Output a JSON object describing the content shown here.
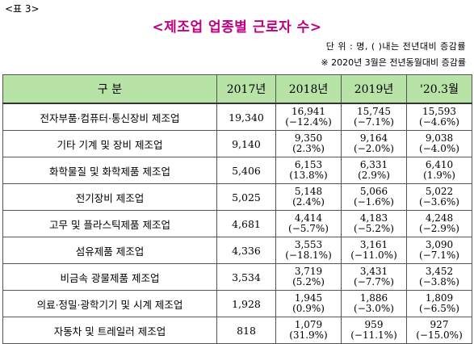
{
  "table_label": "<표 3>",
  "title": "<제조업 업종별 근로자 수>",
  "unit_note": "단 위 : 명, ( )내는 전년대비 증감률",
  "period_note": "※ 2020년 3월은 전년동월대비 증감률",
  "headers": [
    "구 분",
    "2017년",
    "2018년",
    "2019년",
    "'20.3월"
  ],
  "rows": [
    {
      "cat": "전자부품·컴퓨터·통신장비 제조업",
      "y2017": "19,340",
      "y2018": {
        "v": "16,941",
        "c": "(−12.4%)"
      },
      "y2019": {
        "v": "15,745",
        "c": "(−7.1%)"
      },
      "y2020": {
        "v": "15,593",
        "c": "(−4.6%)"
      }
    },
    {
      "cat": "기타 기계 및 장비 제조업",
      "y2017": "9,140",
      "y2018": {
        "v": "9,350",
        "c": "(2.3%)"
      },
      "y2019": {
        "v": "9,164",
        "c": "(−2.0%)"
      },
      "y2020": {
        "v": "9,038",
        "c": "(−4.0%)"
      }
    },
    {
      "cat": "화학물질 및 화학제품 제조업",
      "y2017": "5,406",
      "y2018": {
        "v": "6,153",
        "c": "(13.8%)"
      },
      "y2019": {
        "v": "6,331",
        "c": "(2.9%)"
      },
      "y2020": {
        "v": "6,410",
        "c": "(1.9%)"
      }
    },
    {
      "cat": "전기장비 제조업",
      "y2017": "5,025",
      "y2018": {
        "v": "5,148",
        "c": "(2.4%)"
      },
      "y2019": {
        "v": "5,066",
        "c": "(−1.6%)"
      },
      "y2020": {
        "v": "5,022",
        "c": "(−3.6%)"
      }
    },
    {
      "cat": "고무 및 플라스틱제품 제조업",
      "y2017": "4,681",
      "y2018": {
        "v": "4,414",
        "c": "(−5.7%)"
      },
      "y2019": {
        "v": "4,183",
        "c": "(−5.2%)"
      },
      "y2020": {
        "v": "4,248",
        "c": "(−2.9%)"
      }
    },
    {
      "cat": "섬유제품 제조업",
      "y2017": "4,336",
      "y2018": {
        "v": "3,553",
        "c": "(−18.1%)"
      },
      "y2019": {
        "v": "3,161",
        "c": "(−11.0%)"
      },
      "y2020": {
        "v": "3,090",
        "c": "(−7.1%)"
      }
    },
    {
      "cat": "비금속 광물제품 제조업",
      "y2017": "3,534",
      "y2018": {
        "v": "3,719",
        "c": "(5.2%)"
      },
      "y2019": {
        "v": "3,431",
        "c": "(−7.7%)"
      },
      "y2020": {
        "v": "3,452",
        "c": "(−3.8%)"
      }
    },
    {
      "cat": "의료·정밀·광학기기 및 시계 제조업",
      "y2017": "1,928",
      "y2018": {
        "v": "1,945",
        "c": "(0.9%)"
      },
      "y2019": {
        "v": "1,886",
        "c": "(−3.0%)"
      },
      "y2020": {
        "v": "1,809",
        "c": "(−6.5%)"
      }
    },
    {
      "cat": "자동차 및 트레일러 제조업",
      "y2017": "818",
      "y2018": {
        "v": "1,079",
        "c": "(31.9%)"
      },
      "y2019": {
        "v": "959",
        "c": "(−11.1%)"
      },
      "y2020": {
        "v": "927",
        "c": "(−15.0%)"
      }
    }
  ]
}
